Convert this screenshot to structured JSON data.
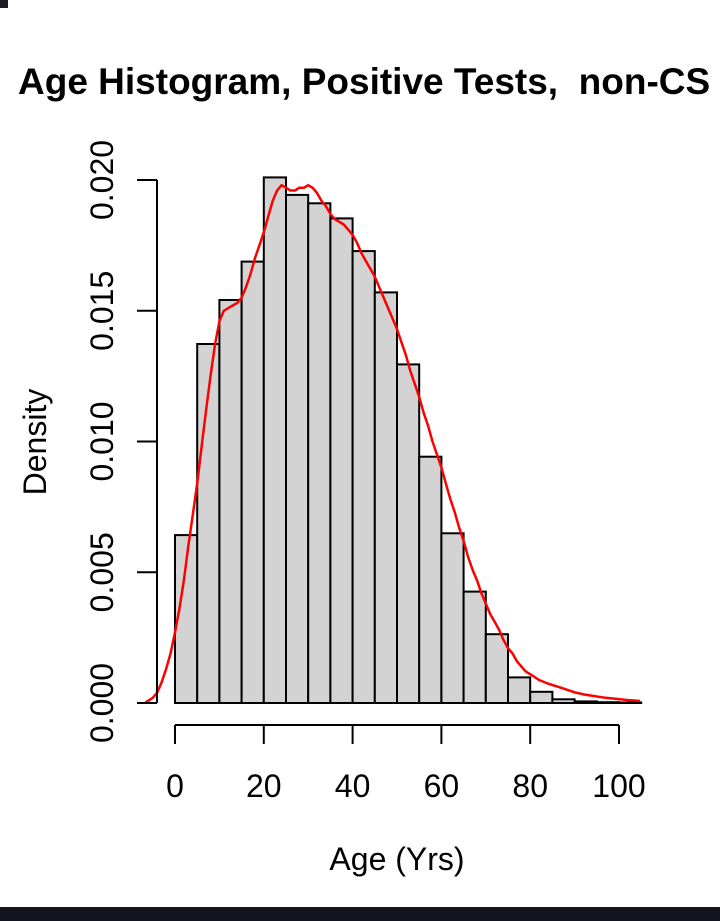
{
  "window": {
    "background": "#ffffff",
    "bottom_bar_color": "#14141f",
    "corner_mark_color": "#1e1e28"
  },
  "chart_data": {
    "type": "histogram",
    "title": "Age Histogram, Positive Tests,  non-CS",
    "xlabel": "Age (Yrs)",
    "ylabel": "Density",
    "x_ticks": [
      0,
      20,
      40,
      60,
      80,
      100
    ],
    "y_ticks": [
      0.0,
      0.005,
      0.01,
      0.015,
      0.02
    ],
    "y_tick_labels": [
      "0.000",
      "0.005",
      "0.010",
      "0.015",
      "0.020"
    ],
    "xlim": [
      0,
      105
    ],
    "ylim": [
      0,
      0.02
    ],
    "grid": false,
    "legend": "none",
    "bin_width": 5,
    "bar_fill": "#d3d3d3",
    "bar_stroke": "#000000",
    "curve_color": "#ff0000",
    "bin_starts": [
      0,
      5,
      10,
      15,
      20,
      25,
      30,
      35,
      40,
      45,
      50,
      55,
      60,
      65,
      70,
      75,
      80,
      85,
      90,
      95,
      100
    ],
    "bin_densities": [
      0.00642,
      0.01373,
      0.01541,
      0.01688,
      0.0201,
      0.01943,
      0.01911,
      0.01853,
      0.01728,
      0.0157,
      0.01295,
      0.00942,
      0.00649,
      0.00426,
      0.00263,
      0.00098,
      0.00043,
      0.00014,
      6e-05,
      3e-05,
      2e-05
    ],
    "density_curve": [
      [
        -6.5,
        3e-05
      ],
      [
        -5,
        0.0002
      ],
      [
        -4,
        0.0004
      ],
      [
        -3,
        0.0008
      ],
      [
        -2,
        0.0013
      ],
      [
        -1,
        0.0019
      ],
      [
        0,
        0.0027
      ],
      [
        1,
        0.0036
      ],
      [
        2,
        0.0047
      ],
      [
        3,
        0.006
      ],
      [
        4,
        0.0072
      ],
      [
        5,
        0.0084
      ],
      [
        6,
        0.0098
      ],
      [
        7,
        0.0112
      ],
      [
        8,
        0.0125
      ],
      [
        9,
        0.0137
      ],
      [
        10,
        0.0146
      ],
      [
        11,
        0.015
      ],
      [
        12,
        0.0151
      ],
      [
        13,
        0.0152
      ],
      [
        14,
        0.0153
      ],
      [
        15,
        0.0155
      ],
      [
        16,
        0.0159
      ],
      [
        17,
        0.0164
      ],
      [
        18,
        0.017
      ],
      [
        19,
        0.0175
      ],
      [
        20,
        0.018
      ],
      [
        21,
        0.0186
      ],
      [
        22,
        0.0192
      ],
      [
        23,
        0.0196
      ],
      [
        24,
        0.0198
      ],
      [
        25,
        0.0197
      ],
      [
        26,
        0.0196
      ],
      [
        27,
        0.0196
      ],
      [
        28,
        0.0197
      ],
      [
        29,
        0.0197
      ],
      [
        30,
        0.0198
      ],
      [
        31,
        0.0197
      ],
      [
        32,
        0.0195
      ],
      [
        33,
        0.0192
      ],
      [
        34,
        0.019
      ],
      [
        35,
        0.0187
      ],
      [
        36,
        0.0185
      ],
      [
        37,
        0.0184
      ],
      [
        38,
        0.0183
      ],
      [
        39,
        0.0181
      ],
      [
        40,
        0.0179
      ],
      [
        41,
        0.0176
      ],
      [
        42,
        0.0172
      ],
      [
        43,
        0.0169
      ],
      [
        44,
        0.0166
      ],
      [
        45,
        0.0163
      ],
      [
        46,
        0.0159
      ],
      [
        47,
        0.0155
      ],
      [
        48,
        0.0151
      ],
      [
        49,
        0.0147
      ],
      [
        50,
        0.0143
      ],
      [
        51,
        0.0138
      ],
      [
        52,
        0.0133
      ],
      [
        53,
        0.0127
      ],
      [
        54,
        0.0122
      ],
      [
        55,
        0.0117
      ],
      [
        56,
        0.0111
      ],
      [
        57,
        0.0106
      ],
      [
        58,
        0.01
      ],
      [
        59,
        0.0095
      ],
      [
        60,
        0.009
      ],
      [
        61,
        0.0084
      ],
      [
        62,
        0.0078
      ],
      [
        63,
        0.0073
      ],
      [
        64,
        0.0067
      ],
      [
        65,
        0.0062
      ],
      [
        66,
        0.0056
      ],
      [
        67,
        0.0051
      ],
      [
        68,
        0.0047
      ],
      [
        69,
        0.0042
      ],
      [
        70,
        0.0038
      ],
      [
        71,
        0.0034
      ],
      [
        72,
        0.0031
      ],
      [
        73,
        0.0028
      ],
      [
        74,
        0.0024
      ],
      [
        75,
        0.0021
      ],
      [
        76,
        0.0019
      ],
      [
        77,
        0.0016
      ],
      [
        78,
        0.0014
      ],
      [
        79,
        0.0012
      ],
      [
        80,
        0.0011
      ],
      [
        82,
        0.00088
      ],
      [
        84,
        0.00074
      ],
      [
        85,
        0.00069
      ],
      [
        87,
        0.00058
      ],
      [
        90,
        0.00041
      ],
      [
        92,
        0.00033
      ],
      [
        95,
        0.00025
      ],
      [
        97,
        0.0002
      ],
      [
        100,
        0.00015
      ],
      [
        102,
        0.00011
      ],
      [
        104.5,
        8e-05
      ]
    ]
  }
}
